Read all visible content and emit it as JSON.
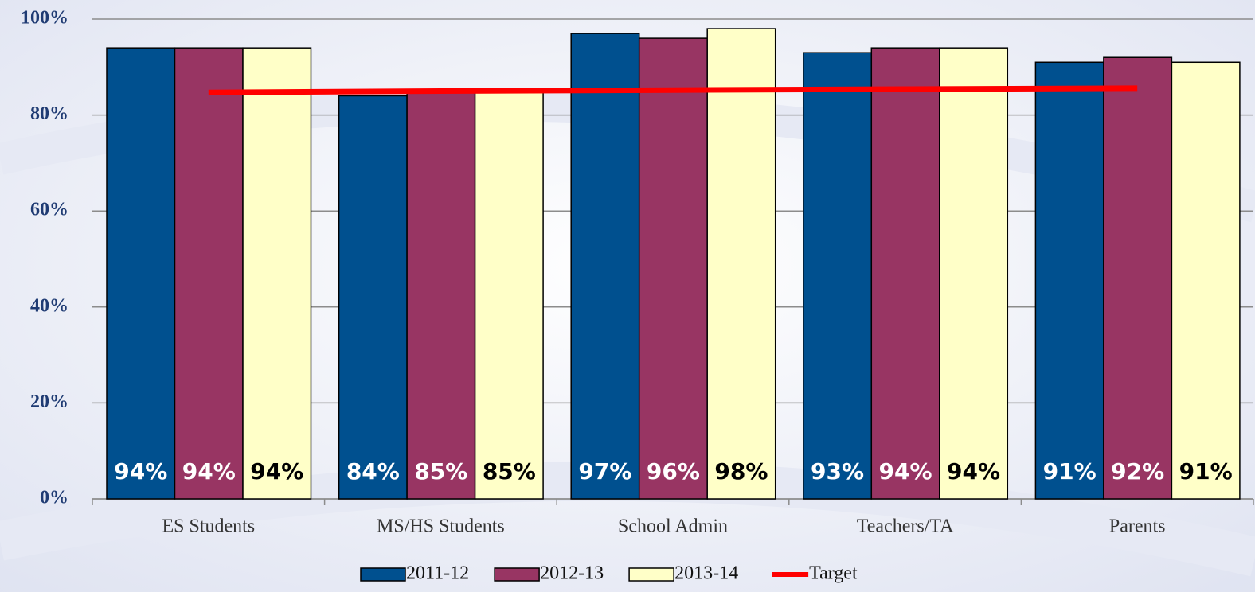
{
  "chart_data": {
    "type": "bar",
    "categories": [
      "ES Students",
      "MS/HS Students",
      "School Admin",
      "Teachers/TA",
      "Parents"
    ],
    "series": [
      {
        "name": "2011-12",
        "color": "#00508f",
        "label_color": "#ffffff",
        "values": [
          94,
          84,
          97,
          93,
          91
        ],
        "value_labels": [
          "94%",
          "84%",
          "97%",
          "93%",
          "91%"
        ]
      },
      {
        "name": "2012-13",
        "color": "#983563",
        "label_color": "#ffffff",
        "values": [
          94,
          85,
          96,
          94,
          92
        ],
        "value_labels": [
          "94%",
          "85%",
          "96%",
          "94%",
          "92%"
        ]
      },
      {
        "name": "2013-14",
        "color": "#ffffc8",
        "label_color": "#000000",
        "values": [
          94,
          85,
          98,
          94,
          91
        ],
        "value_labels": [
          "94%",
          "85%",
          "98%",
          "94%",
          "91%"
        ]
      },
      {
        "name": "Target",
        "type": "line",
        "color": "#ff0000",
        "values": [
          84.7,
          85,
          85.2,
          85.4,
          85.6
        ]
      }
    ],
    "ylim": [
      0,
      100
    ],
    "yticks": [
      {
        "value": 0,
        "label": "0%"
      },
      {
        "value": 20,
        "label": "20%"
      },
      {
        "value": 40,
        "label": "40%"
      },
      {
        "value": 60,
        "label": "60%"
      },
      {
        "value": 80,
        "label": "80%"
      },
      {
        "value": 100,
        "label": "100%"
      }
    ],
    "grid": true,
    "legend": "bottom"
  }
}
